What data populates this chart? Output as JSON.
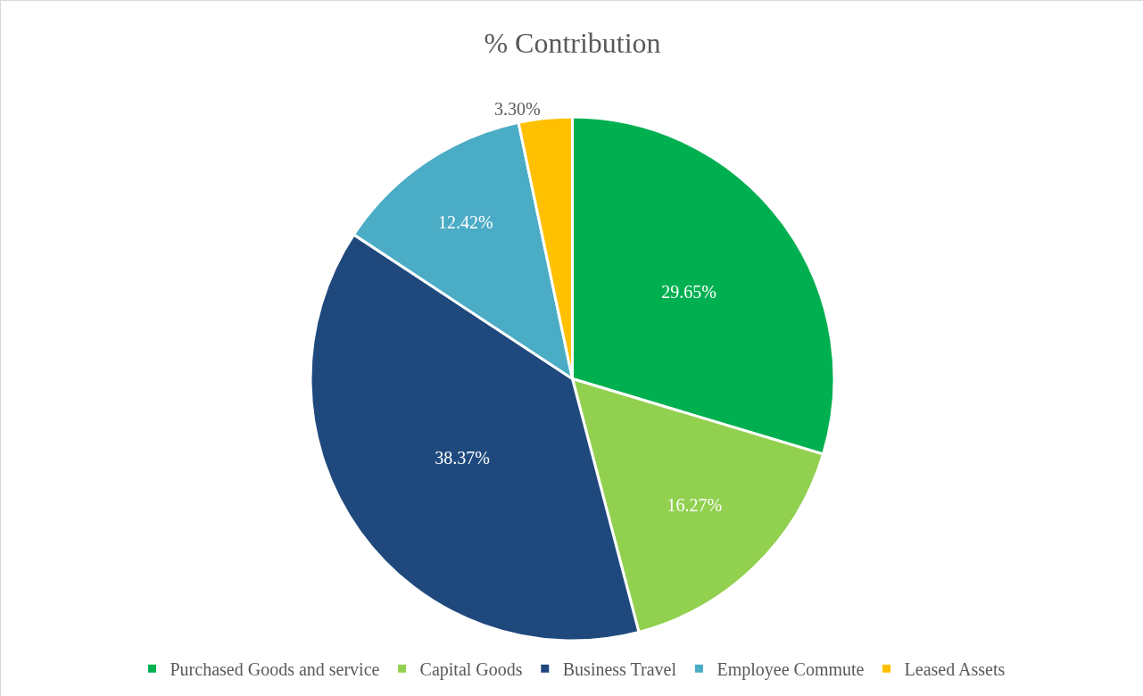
{
  "chart_data": {
    "type": "pie",
    "title": "% Contribution",
    "categories": [
      "Purchased Goods and service",
      "Capital Goods",
      "Business Travel",
      "Employee Commute",
      "Leased Assets"
    ],
    "values": [
      29.65,
      16.27,
      38.37,
      12.42,
      3.3
    ],
    "colors": [
      "#00b050",
      "#92d050",
      "#1f497d",
      "#4bacc6",
      "#ffc000"
    ],
    "value_labels": [
      "29.65%",
      "16.27%",
      "38.37%",
      "12.42%",
      "3.30%"
    ],
    "legend": "bottom"
  }
}
